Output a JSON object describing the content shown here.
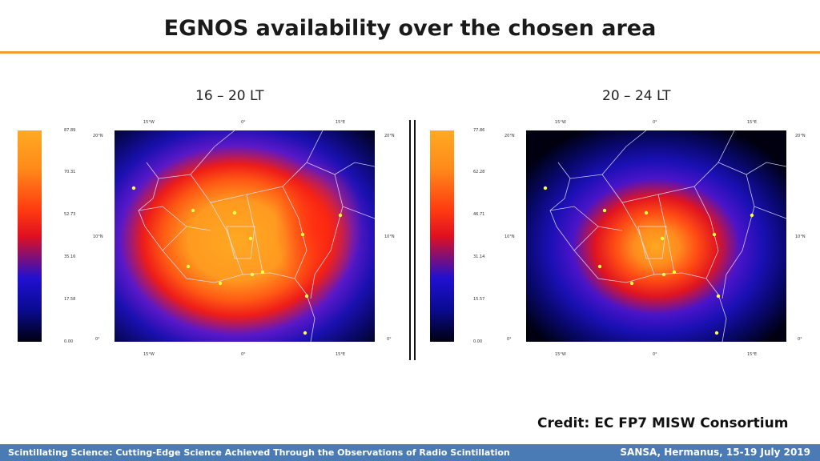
{
  "slide": {
    "title": "EGNOS availability over the chosen area",
    "credit": "Credit: EC FP7 MISW Consortium",
    "footer_left": "Scintillating Science: Cutting-Edge Science Achieved Through the Observations of Radio Scintillation",
    "footer_right": "SANSA, Hermanus, 15-19 July 2019",
    "accent_color": "#f0a030",
    "footer_color": "#4a7bb5"
  },
  "panels": [
    {
      "label": "16 – 20 LT",
      "colorbar_ticks": [
        "87.89",
        "70.31",
        "52.73",
        "35.16",
        "17.58",
        "0.00"
      ],
      "top_lon_ticks": [
        "15°W",
        "0°",
        "15°E"
      ],
      "bottom_lon_ticks": [
        "15°W",
        "0°",
        "15°E"
      ],
      "left_lat_ticks": [
        "20°N",
        "10°N",
        "0°"
      ],
      "right_lat_ticks": [
        "20°N",
        "10°N",
        "0°"
      ]
    },
    {
      "label": "20 – 24 LT",
      "colorbar_ticks": [
        "77.86",
        "62.28",
        "46.71",
        "31.14",
        "15.57",
        "0.00"
      ],
      "top_lon_ticks": [
        "15°W",
        "0°",
        "15°E"
      ],
      "bottom_lon_ticks": [
        "15°W",
        "0°",
        "15°E"
      ],
      "left_lat_ticks": [
        "20°N",
        "10°N",
        "0°"
      ],
      "right_lat_ticks": [
        "20°N",
        "10°N",
        "0°"
      ]
    }
  ]
}
